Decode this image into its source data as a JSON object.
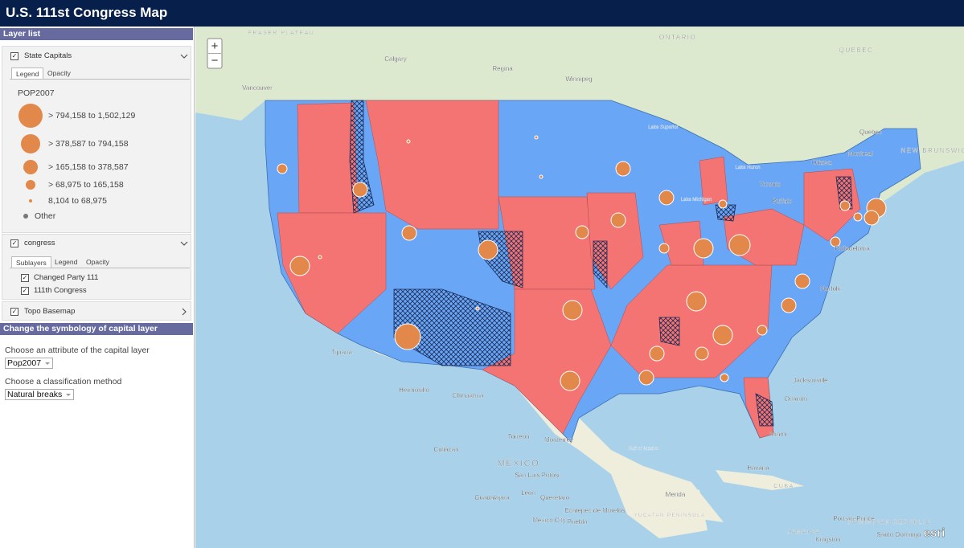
{
  "header": {
    "title": "U.S. 111st Congress Map"
  },
  "layer_list": {
    "title": "Layer list",
    "layers": [
      {
        "name": "State Capitals",
        "tabs": [
          "Legend",
          "Opacity"
        ],
        "legend": {
          "field": "POP2007",
          "classes": [
            "> 794,158 to 1,502,129",
            "> 378,587 to 794,158",
            "> 165,158 to 378,587",
            "> 68,975 to 165,158",
            "8,104 to 68,975",
            "Other"
          ]
        }
      },
      {
        "name": "congress",
        "tabs": [
          "Sublayers",
          "Legend",
          "Opacity"
        ],
        "sublayers": [
          "Changed Party 111",
          "111th Congress"
        ]
      },
      {
        "name": "Topo Basemap"
      }
    ]
  },
  "symbology": {
    "title": "Change the symbology of capital layer",
    "attribute_label": "Choose an attribute of the capital layer",
    "attribute_value": "Pop2007",
    "method_label": "Choose a classification method",
    "method_value": "Natural breaks"
  },
  "map": {
    "zoom_in": "+",
    "zoom_out": "−",
    "attribution": "esri",
    "labels": [
      "FRASER PLATEAU",
      "Calgary",
      "Regina",
      "Winnipeg",
      "ONTARIO",
      "QUEBEC",
      "Quebec",
      "Montreal",
      "Ottawa",
      "Toronto",
      "Buffalo",
      "NEW BRUNSWICK",
      "Vancouver",
      "Lake Superior",
      "Lake Michigan",
      "Lake Huron",
      "Tijuana",
      "Hermosillo",
      "Chihuahua",
      "Torreon",
      "Monterrey",
      "Culiacan",
      "MÉXICO",
      "San Luis Potosi",
      "Leon",
      "Guadalajara",
      "Queretaro",
      "Ecatepec de Morelos",
      "Mexico City",
      "Puebla",
      "Merida",
      "YUCATAN PENINSULA",
      "Gulf of Mexico",
      "Havana",
      "CUBA",
      "Jacksonville",
      "Orlando",
      "Miami",
      "Norfolk",
      "Philadelphia",
      "JAMAICA",
      "Kingston",
      "DOMINICAN REPUBLIC",
      "Port-au-Prince",
      "Santo Domingo"
    ]
  }
}
